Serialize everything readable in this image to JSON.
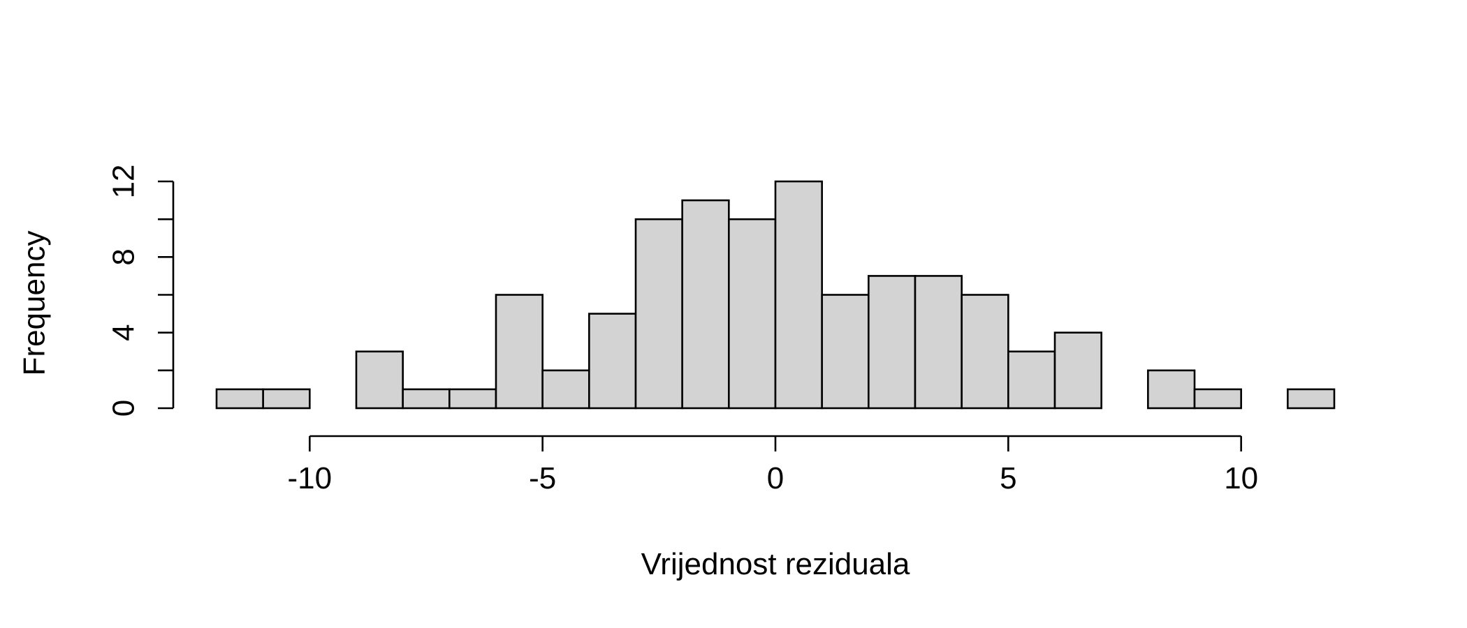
{
  "chart_data": {
    "type": "bar",
    "title": "",
    "xlabel": "Vrijednost reziduala",
    "ylabel": "Frequency",
    "bins": [
      {
        "x0": -12,
        "x1": -11,
        "count": 1
      },
      {
        "x0": -11,
        "x1": -10,
        "count": 1
      },
      {
        "x0": -10,
        "x1": -9,
        "count": 0
      },
      {
        "x0": -9,
        "x1": -8,
        "count": 3
      },
      {
        "x0": -8,
        "x1": -7,
        "count": 1
      },
      {
        "x0": -7,
        "x1": -6,
        "count": 1
      },
      {
        "x0": -6,
        "x1": -5,
        "count": 6
      },
      {
        "x0": -5,
        "x1": -4,
        "count": 2
      },
      {
        "x0": -4,
        "x1": -3,
        "count": 5
      },
      {
        "x0": -3,
        "x1": -2,
        "count": 10
      },
      {
        "x0": -2,
        "x1": -1,
        "count": 11
      },
      {
        "x0": -1,
        "x1": 0,
        "count": 10
      },
      {
        "x0": 0,
        "x1": 1,
        "count": 12
      },
      {
        "x0": 1,
        "x1": 2,
        "count": 6
      },
      {
        "x0": 2,
        "x1": 3,
        "count": 7
      },
      {
        "x0": 3,
        "x1": 4,
        "count": 7
      },
      {
        "x0": 4,
        "x1": 5,
        "count": 6
      },
      {
        "x0": 5,
        "x1": 6,
        "count": 3
      },
      {
        "x0": 6,
        "x1": 7,
        "count": 4
      },
      {
        "x0": 7,
        "x1": 8,
        "count": 0
      },
      {
        "x0": 8,
        "x1": 9,
        "count": 2
      },
      {
        "x0": 9,
        "x1": 10,
        "count": 1
      },
      {
        "x0": 10,
        "x1": 11,
        "count": 0
      },
      {
        "x0": 11,
        "x1": 12,
        "count": 1
      }
    ],
    "xlim": [
      -12,
      12
    ],
    "ylim": [
      0,
      12
    ],
    "x_ticks": [
      -10,
      -5,
      0,
      5,
      10
    ],
    "x_tick_labels": [
      "-10",
      "-5",
      "0",
      "5",
      "10"
    ],
    "y_ticks": [
      0,
      2,
      4,
      6,
      8,
      10,
      12
    ],
    "y_tick_labels": [
      "0",
      "4",
      "8",
      "12"
    ],
    "y_labeled_ticks": [
      0,
      4,
      8,
      12
    ],
    "grid": false,
    "bar_fill": "#d3d3d3",
    "bar_stroke": "#000000"
  }
}
